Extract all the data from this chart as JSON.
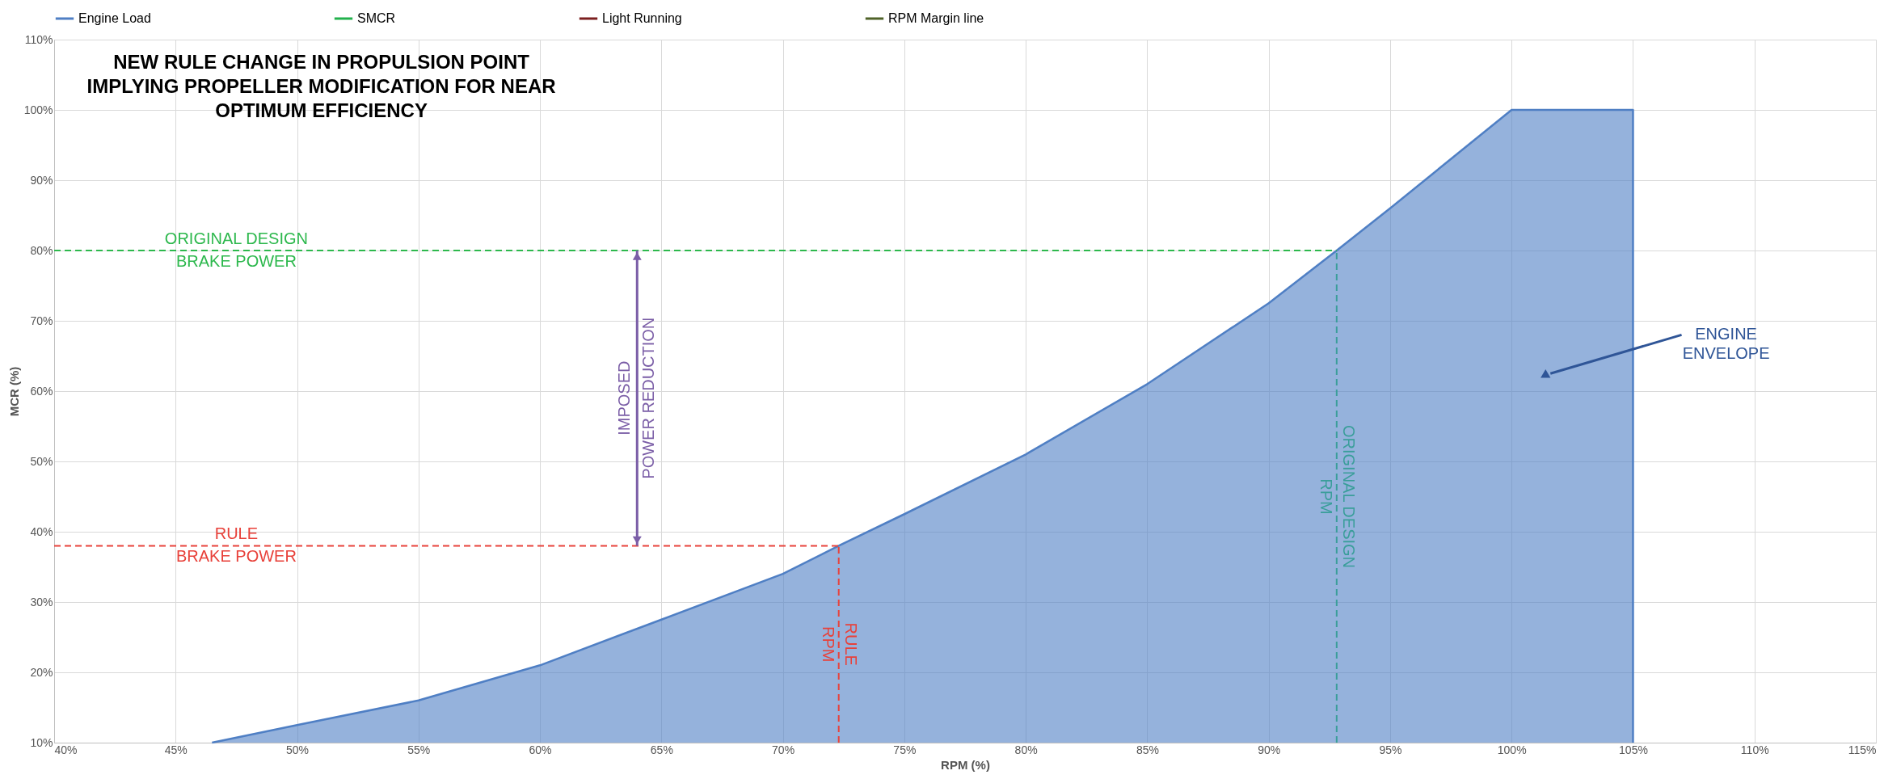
{
  "chart_data": {
    "type": "area",
    "title": "NEW RULE CHANGE IN PROPULSION POINT\nIMPLYING PROPELLER MODIFICATION FOR NEAR\nOPTIMUM EFFICIENCY",
    "xlabel": "RPM (%)",
    "ylabel": "MCR (%)",
    "xlim": [
      40,
      115
    ],
    "ylim": [
      10,
      110
    ],
    "xticks": [
      {
        "value": 40,
        "label": "40%"
      },
      {
        "value": 45,
        "label": "45%"
      },
      {
        "value": 50,
        "label": "50%"
      },
      {
        "value": 55,
        "label": "55%"
      },
      {
        "value": 60,
        "label": "60%"
      },
      {
        "value": 65,
        "label": "65%"
      },
      {
        "value": 70,
        "label": "70%"
      },
      {
        "value": 75,
        "label": "75%"
      },
      {
        "value": 80,
        "label": "80%"
      },
      {
        "value": 85,
        "label": "85%"
      },
      {
        "value": 90,
        "label": "90%"
      },
      {
        "value": 95,
        "label": "95%"
      },
      {
        "value": 100,
        "label": "100%"
      },
      {
        "value": 105,
        "label": "105%"
      },
      {
        "value": 110,
        "label": "110%"
      },
      {
        "value": 115,
        "label": "115%"
      }
    ],
    "yticks": [
      {
        "value": 10,
        "label": "10%"
      },
      {
        "value": 20,
        "label": "20%"
      },
      {
        "value": 30,
        "label": "30%"
      },
      {
        "value": 40,
        "label": "40%"
      },
      {
        "value": 50,
        "label": "50%"
      },
      {
        "value": 60,
        "label": "60%"
      },
      {
        "value": 70,
        "label": "70%"
      },
      {
        "value": 80,
        "label": "80%"
      },
      {
        "value": 90,
        "label": "90%"
      },
      {
        "value": 100,
        "label": "100%"
      },
      {
        "value": 110,
        "label": "110%"
      }
    ],
    "grid": true,
    "legend": "top",
    "series": [
      {
        "name": "Engine Load",
        "color": "#4f7fc4",
        "x": [
          46.5,
          50,
          55,
          60,
          65,
          70,
          72.3,
          75,
          80,
          85,
          90,
          92.8,
          95,
          100,
          105,
          105
        ],
        "values": [
          10,
          12.5,
          16,
          21,
          27.5,
          34,
          38,
          42.5,
          51,
          61,
          72.5,
          80,
          86,
          100,
          100,
          10
        ]
      },
      {
        "name": "SMCR",
        "color": "#22b14c"
      },
      {
        "name": "Light Running",
        "color": "#7b1f1f"
      },
      {
        "name": "RPM Margin line",
        "color": "#4f6228"
      }
    ],
    "ref_lines": [
      {
        "axis": "y",
        "value": 80,
        "label": "ORIGINAL DESIGN\nBRAKE POWER",
        "color": "#2db84d",
        "line_style": "dashed"
      },
      {
        "axis": "y",
        "value": 38,
        "label": "RULE\nBRAKE POWER",
        "color": "#e8413a",
        "line_style": "dashed"
      },
      {
        "axis": "x",
        "value": 72.3,
        "label": "RULE\nRPM",
        "color": "#e8413a",
        "line_style": "dashed"
      },
      {
        "axis": "x",
        "value": 92.8,
        "label": "ORIGINAL DESIGN\nRPM",
        "color": "#3a9e9a",
        "line_style": "dashed"
      }
    ],
    "annotations": [
      "IMPOSED\nPOWER REDUCTION",
      "ENGINE\nENVELOPE"
    ]
  }
}
